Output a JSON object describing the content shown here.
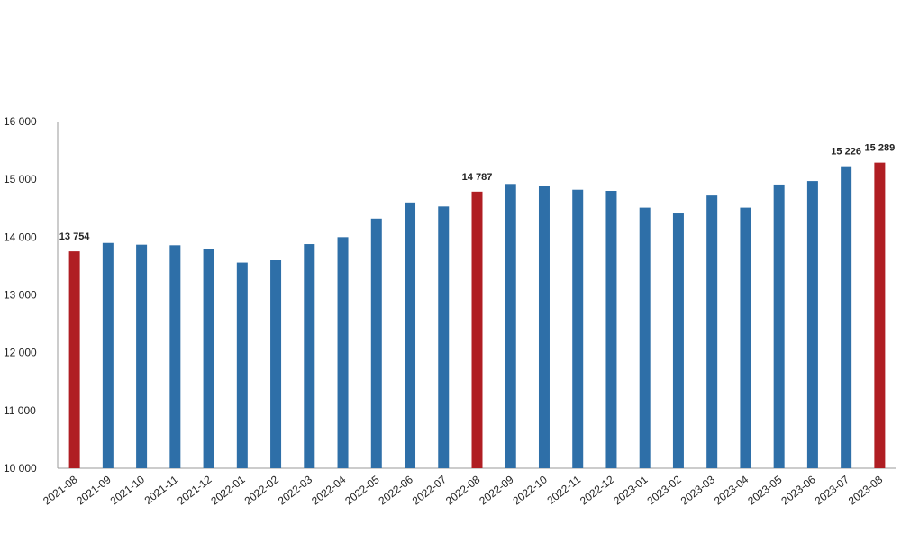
{
  "colors": {
    "bar_default": "#2E6FA8",
    "bar_highlight": "#B01E23",
    "axis": "#9a9a9a"
  },
  "chart_data": {
    "type": "bar",
    "categories": [
      "2021-08",
      "2021-09",
      "2021-10",
      "2021-11",
      "2021-12",
      "2022-01",
      "2022-02",
      "2022-03",
      "2022-04",
      "2022-05",
      "2022-06",
      "2022-07",
      "2022-08",
      "2022-09",
      "2022-10",
      "2022-11",
      "2022-12",
      "2023-01",
      "2023-02",
      "2023-03",
      "2023-04",
      "2023-05",
      "2023-06",
      "2023-07",
      "2023-08"
    ],
    "x_tick_labels": [
      "2021-08",
      "2021-09",
      "2021-10",
      "2021-11",
      "2021-12",
      "2022-01",
      "2022-02",
      "2022-03",
      "2022-04",
      "2022-05",
      "2022-06",
      "2022-07",
      "2022-08",
      "2022-09",
      "2022-10",
      "2022-11",
      "2022-12",
      "2023-01",
      "2023-02",
      "2023-03",
      "2023-04",
      "2023-05",
      "2023-06",
      "2023-07",
      "2023-08"
    ],
    "values": [
      13754,
      13900,
      13870,
      13860,
      13800,
      13560,
      13600,
      13880,
      14000,
      14320,
      14600,
      14530,
      14787,
      14920,
      14890,
      14820,
      14800,
      14510,
      14410,
      14720,
      14510,
      14910,
      14970,
      15226,
      15289
    ],
    "highlight": [
      true,
      false,
      false,
      false,
      false,
      false,
      false,
      false,
      false,
      false,
      false,
      false,
      true,
      false,
      false,
      false,
      false,
      false,
      false,
      false,
      false,
      false,
      false,
      false,
      true
    ],
    "data_labels": [
      "13 754",
      "",
      "",
      "",
      "",
      "",
      "",
      "",
      "",
      "",
      "",
      "",
      "14 787",
      "",
      "",
      "",
      "",
      "",
      "",
      "",
      "",
      "",
      "",
      "15 226",
      "15 289"
    ],
    "y_ticks": [
      10000,
      11000,
      12000,
      13000,
      14000,
      15000,
      16000
    ],
    "y_tick_labels": [
      "10 000",
      "11 000",
      "12 000",
      "13 000",
      "14 000",
      "15 000",
      "16 000"
    ],
    "ylim": [
      10000,
      16000
    ],
    "title": "",
    "xlabel": "",
    "ylabel": "",
    "grid": false,
    "legend": "none"
  }
}
